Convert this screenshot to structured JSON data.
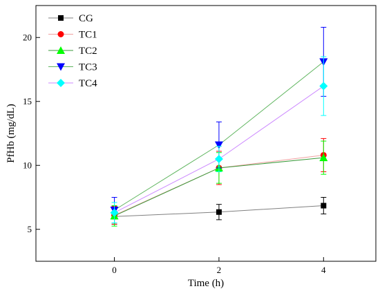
{
  "chart_data": {
    "type": "line",
    "xlabel": "Time (h)",
    "ylabel": "PfHb (mg/dL)",
    "x": [
      0,
      2,
      4
    ],
    "xlim": [
      -1.5,
      5.0
    ],
    "ylim": [
      2.5,
      22.5
    ],
    "xticks": [
      "0",
      "2",
      "4"
    ],
    "yticks": [
      "5",
      "10",
      "15",
      "20"
    ],
    "grid": false,
    "legend_position": "top-left",
    "series": [
      {
        "name": "CG",
        "marker": "square",
        "color": "#000000",
        "line_color": "#7f7f7f",
        "values": [
          6.0,
          6.35,
          6.85
        ],
        "errors": [
          0.6,
          0.6,
          0.65
        ]
      },
      {
        "name": "TC1",
        "marker": "circle",
        "color": "#ff0000",
        "line_color": "#f0a0a0",
        "values": [
          6.1,
          9.8,
          10.8
        ],
        "errors": [
          0.7,
          1.3,
          1.3
        ]
      },
      {
        "name": "TC2",
        "marker": "triangle-up",
        "color": "#00ff00",
        "line_color": "#3a9a3a",
        "values": [
          6.05,
          9.8,
          10.6
        ],
        "errors": [
          0.8,
          1.2,
          1.3
        ]
      },
      {
        "name": "TC3",
        "marker": "triangle-down",
        "color": "#0000ff",
        "line_color": "#5fb55f",
        "values": [
          6.5,
          11.6,
          18.1
        ],
        "errors": [
          1.0,
          1.8,
          2.7
        ]
      },
      {
        "name": "TC4",
        "marker": "diamond",
        "color": "#00ffff",
        "line_color": "#cc88ff",
        "values": [
          6.3,
          10.5,
          16.2
        ],
        "errors": [
          0.8,
          1.0,
          2.3
        ]
      }
    ]
  }
}
